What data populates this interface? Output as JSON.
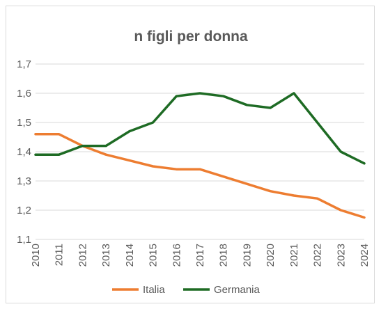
{
  "chart_data": {
    "type": "line",
    "title": "n figli per donna",
    "xlabel": "",
    "ylabel": "",
    "categories": [
      "2010",
      "2011",
      "2012",
      "2013",
      "2014",
      "2015",
      "2016",
      "2017",
      "2018",
      "2019",
      "2020",
      "2021",
      "2022",
      "2023",
      "2024"
    ],
    "y_ticks": [
      "1,1",
      "1,2",
      "1,3",
      "1,4",
      "1,5",
      "1,6",
      "1,7"
    ],
    "ylim": [
      1.1,
      1.7
    ],
    "grid": true,
    "legend_position": "bottom",
    "series": [
      {
        "name": "Italia",
        "color": "#ED7D31",
        "values": [
          1.46,
          1.46,
          1.42,
          1.39,
          1.37,
          1.35,
          1.34,
          1.34,
          1.315,
          1.29,
          1.265,
          1.25,
          1.24,
          1.2,
          1.175
        ]
      },
      {
        "name": "Germania",
        "color": "#1E6B24",
        "values": [
          1.39,
          1.39,
          1.42,
          1.42,
          1.47,
          1.5,
          1.59,
          1.6,
          1.59,
          1.56,
          1.55,
          1.6,
          1.5,
          1.4,
          1.36
        ]
      }
    ]
  }
}
